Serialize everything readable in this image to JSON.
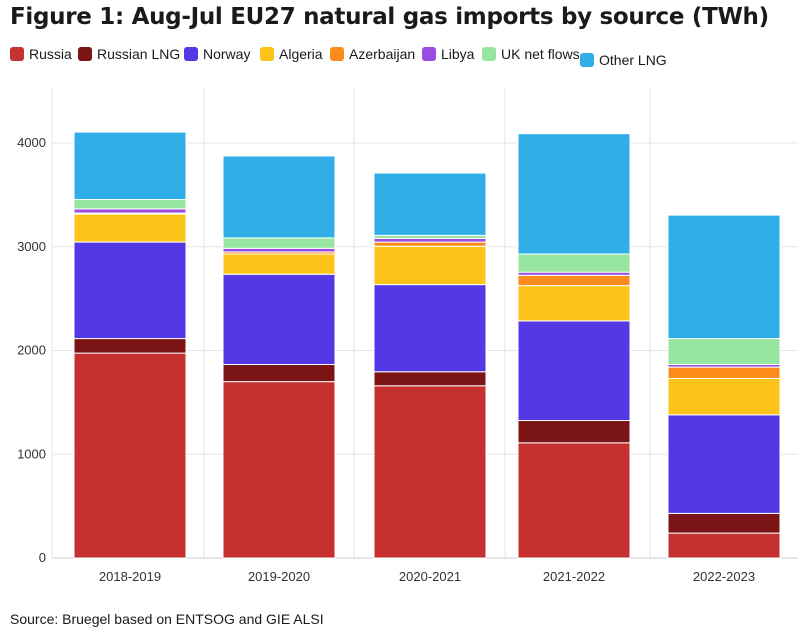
{
  "title": "Figure 1: Aug-Jul EU27 natural gas imports by source (TWh)",
  "source": "Source: Bruegel based on ENTSOG and GIE ALSI",
  "colors": {
    "Russia": "#c53030",
    "Russian LNG": "#7b1515",
    "Norway": "#5438e6",
    "Algeria": "#fcc419",
    "Azerbaijan": "#fb8c1c",
    "Libya": "#9a4de0",
    "UK net flows": "#96e6a1",
    "Other LNG": "#30aee8"
  },
  "chart_data": {
    "type": "bar",
    "stacked": true,
    "categories": [
      "2018-2019",
      "2019-2020",
      "2020-2021",
      "2021-2022",
      "2022-2023"
    ],
    "series": [
      {
        "name": "Russia",
        "values": [
          1975,
          1700,
          1660,
          1110,
          240
        ]
      },
      {
        "name": "Russian LNG",
        "values": [
          140,
          165,
          135,
          215,
          190
        ]
      },
      {
        "name": "Norway",
        "values": [
          930,
          870,
          840,
          960,
          950
        ]
      },
      {
        "name": "Algeria",
        "values": [
          270,
          195,
          370,
          340,
          350
        ]
      },
      {
        "name": "Azerbaijan",
        "values": [
          10,
          20,
          40,
          100,
          110
        ]
      },
      {
        "name": "Libya",
        "values": [
          40,
          35,
          35,
          30,
          25
        ]
      },
      {
        "name": "UK net flows",
        "values": [
          90,
          100,
          30,
          175,
          250
        ]
      },
      {
        "name": "Other LNG",
        "values": [
          650,
          790,
          600,
          1160,
          1190
        ]
      }
    ],
    "yticks": [
      0,
      1000,
      2000,
      3000,
      4000
    ],
    "ylim": [
      0,
      4500
    ],
    "grid": true,
    "legend": "top"
  }
}
